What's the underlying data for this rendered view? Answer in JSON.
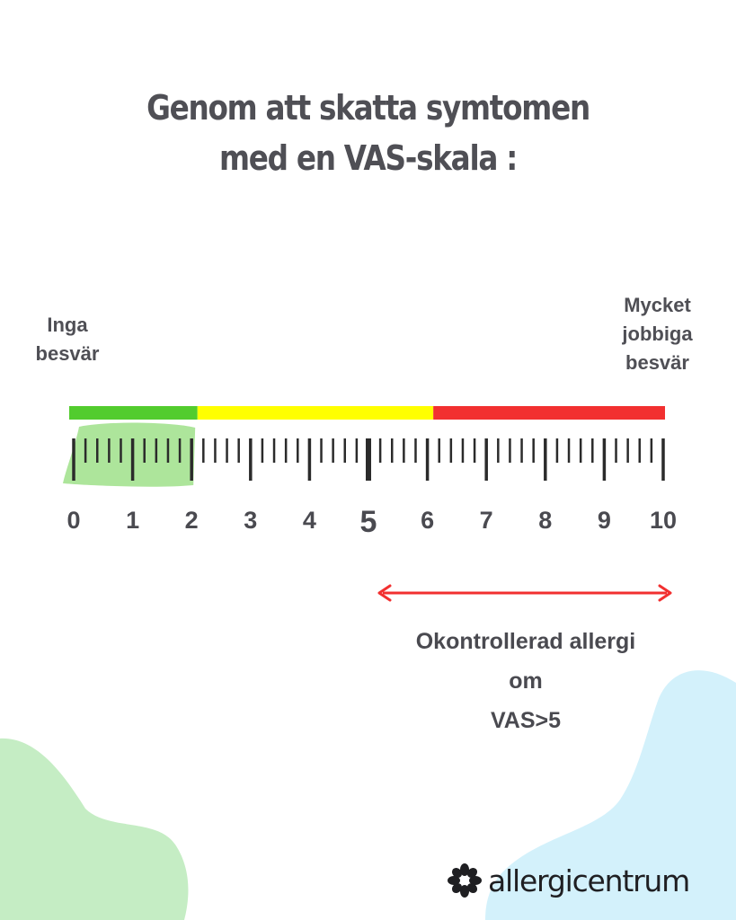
{
  "title": {
    "line1": "Genom att skatta symtomen",
    "line2": "med en VAS-skala :"
  },
  "scale": {
    "left_label": "Inga besvär",
    "right_label_lines": [
      "Mycket",
      "jobbiga",
      "besvär"
    ],
    "min": 0,
    "max": 10,
    "ticks": [
      "0",
      "1",
      "2",
      "3",
      "4",
      "5",
      "6",
      "7",
      "8",
      "9",
      "10"
    ],
    "minor_ticks_per_unit": 5,
    "zones": [
      {
        "from": 0,
        "to": 2.1,
        "color": "#52cc2e"
      },
      {
        "from": 2.1,
        "to": 6.1,
        "color": "#ffff00"
      },
      {
        "from": 6.1,
        "to": 10,
        "color": "#f23030"
      }
    ],
    "highlight": {
      "from": 0,
      "to": 2,
      "color": "#9fe08a"
    },
    "emphasized_tick": 5
  },
  "note": {
    "line1": "Okontrollerad allergi",
    "line2": "om",
    "line3": "VAS>5",
    "arrow_from": 5,
    "arrow_to": 10,
    "arrow_color": "#f23030"
  },
  "logo": {
    "text": "allergicentrum",
    "icon": "flower-icon"
  },
  "colors": {
    "text": "#4f4f55",
    "tick": "#2b2b2b",
    "blob_green": "#c5edc4",
    "blob_blue": "#d3f1fb"
  }
}
